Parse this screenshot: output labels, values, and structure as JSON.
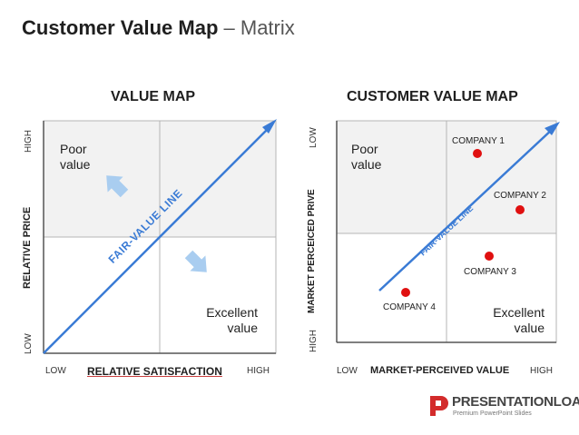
{
  "title": {
    "main": "Customer Value Map",
    "sub": "– Matrix"
  },
  "value_map": {
    "header": "VALUE MAP",
    "y_high": "HIGH",
    "y_low": "LOW",
    "y_axis": "RELATIVE PRICE",
    "x_low": "LOW",
    "x_high": "HIGH",
    "x_axis": "RELATIVE SATISFACTION",
    "line_label": "FAIR-VALUE LINE",
    "poor": "Poor\nvalue",
    "excellent": "Excellent\nvalue"
  },
  "customer_value_map": {
    "header": "CUSTOMER VALUE MAP",
    "y_low": "LOW",
    "y_high": "HIGH",
    "y_axis": "MARKET PERCEICED PRIVE",
    "x_low": "LOW",
    "x_high": "HIGH",
    "x_axis": "MARKET-PERCEIVED VALUE",
    "line_label": "FAIR-VALUE LINE",
    "poor": "Poor\nvalue",
    "excellent": "Excellent\nvalue",
    "companies": [
      {
        "label": "COMPANY 1"
      },
      {
        "label": "COMPANY 2"
      },
      {
        "label": "COMPANY 3"
      },
      {
        "label": "COMPANY 4"
      }
    ]
  },
  "brand": {
    "name": "PRESENTATIONLOAD",
    "tagline": "Premium PowerPoint Slides"
  },
  "colors": {
    "line": "#3a7bd5",
    "arrow": "#a9cdf0",
    "dot": "#e01010",
    "quad_fill": "#f2f2f2",
    "grid": "#b5b5b5"
  }
}
